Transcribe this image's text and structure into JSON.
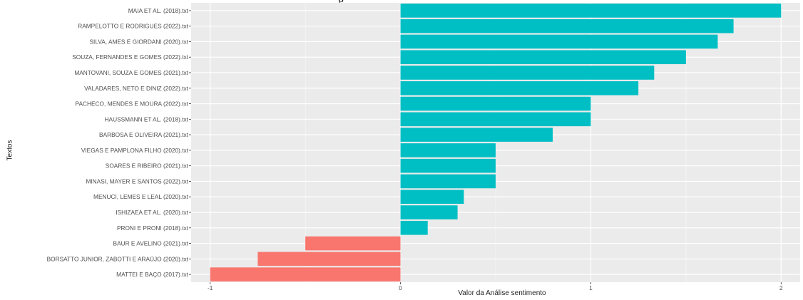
{
  "figure": {
    "top_fragment": "g"
  },
  "chart_data": {
    "type": "bar",
    "orientation": "horizontal",
    "title": "",
    "xlabel": "Valor da Análise sentimento",
    "ylabel": "Textos",
    "xlim": [
      -1.1,
      2.1
    ],
    "x_ticks": [
      -1,
      0,
      1,
      2
    ],
    "x_tick_labels": [
      "-1",
      "0",
      "1",
      "2"
    ],
    "grid": true,
    "legend": "none",
    "colors": {
      "positive": "#00bfc4",
      "negative": "#f8766d",
      "panel": "#ebebeb",
      "gridline": "#ffffff"
    },
    "categories": [
      "MAIA ET AL. (2018).txt",
      "RAMPELOTTO E RODRIGUES (2022).txt",
      "SILVA, AMES E GIORDANI (2020).txt",
      "SOUZA, FERNANDES E GOMES (2022).txt",
      "MANTOVANI, SOUZA E GOMES (2021).txt",
      "VALADARES, NETO E DINIZ (2022).txt",
      "PACHECO, MENDES E MOURA (2022).txt",
      "HAUSSMANN ET AL. (2018).txt",
      "BARBOSA E OLIVEIRA (2021).txt",
      "VIEGAS E PAMPLONA FILHO (2020).txt",
      "SOARES E RIBEIRO (2021).txt",
      "MINASI, MAYER E SANTOS (2022).txt",
      "MENUCI, LEMES E LEAL (2020).txt",
      "ISHIZAEA ET AL. (2020).txt",
      "PRONI E PRONI (2018).txt",
      "BAUR E AVELINO (2021).txt",
      "BORSATTO JUNIOR, ZABOTTI E ARAÚJO (2020).txt",
      "MATTEI E BAÇO (2017).txt"
    ],
    "values": [
      2.0,
      1.75,
      1.667,
      1.5,
      1.333,
      1.25,
      1.0,
      1.0,
      0.8,
      0.5,
      0.5,
      0.5,
      0.333,
      0.3,
      0.143,
      -0.5,
      -0.75,
      -1.0
    ]
  }
}
